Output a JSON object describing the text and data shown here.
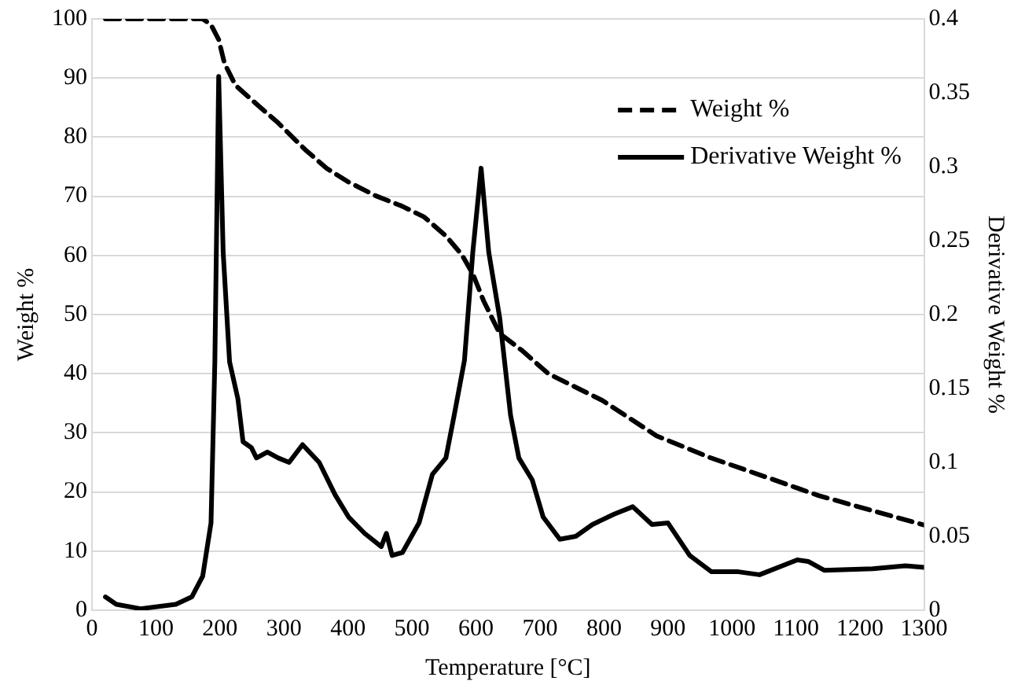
{
  "chart_data": {
    "type": "line",
    "xlabel": "Temperature [°C]",
    "ylabel": "Weight %",
    "y2label": "Derivative Weight %",
    "xlim": [
      0,
      1300
    ],
    "xticks": [
      0,
      100,
      200,
      300,
      400,
      500,
      600,
      700,
      800,
      900,
      1000,
      1100,
      1200,
      1300
    ],
    "ylim": [
      0,
      100
    ],
    "yticks": [
      0,
      10,
      20,
      30,
      40,
      50,
      60,
      70,
      80,
      90,
      100
    ],
    "y2lim": [
      0,
      0.4
    ],
    "y2ticks": [
      0,
      0.05,
      0.1,
      0.15,
      0.2,
      0.25,
      0.3,
      0.35,
      0.4
    ],
    "grid": "y",
    "legend": "top right",
    "marker": "none",
    "series": [
      {
        "name": "Weight %",
        "color": "#000000",
        "line_style": "dashed",
        "x": [
          21,
          173,
          186,
          198,
          207,
          224,
          257,
          291,
          333,
          367,
          401,
          443,
          485,
          519,
          553,
          578,
          595,
          612,
          637,
          671,
          713,
          797,
          882,
          966,
          1051,
          1135,
          1300
        ],
        "values": [
          100,
          100,
          99,
          96.5,
          92.5,
          88.8,
          85.6,
          82.4,
          77.9,
          74.7,
          72.4,
          70.1,
          68.3,
          66.5,
          63.3,
          60.1,
          56.9,
          52.3,
          46.8,
          44,
          40,
          35.5,
          29.5,
          25.8,
          22.6,
          19.4,
          14.4
        ]
      },
      {
        "name": "Derivative Weight %",
        "color": "#000000",
        "line_style": "solid",
        "axis": "y2",
        "x": [
          21,
          38,
          76,
          131,
          156,
          173,
          186,
          192,
          198,
          205,
          215,
          228,
          236,
          249,
          257,
          274,
          291,
          308,
          329,
          355,
          380,
          401,
          426,
          452,
          460,
          469,
          485,
          511,
          532,
          553,
          566,
          582,
          595,
          608,
          620,
          637,
          654,
          667,
          688,
          705,
          731,
          756,
          782,
          816,
          845,
          875,
          900,
          934,
          968,
          1010,
          1043,
          1102,
          1119,
          1144,
          1220,
          1271,
          1300
        ],
        "values": [
          0.009,
          0.004,
          0.001,
          0.004,
          0.009,
          0.023,
          0.059,
          0.168,
          0.361,
          0.242,
          0.168,
          0.143,
          0.114,
          0.11,
          0.103,
          0.107,
          0.103,
          0.1,
          0.112,
          0.1,
          0.078,
          0.063,
          0.052,
          0.043,
          0.052,
          0.037,
          0.039,
          0.059,
          0.092,
          0.103,
          0.132,
          0.169,
          0.242,
          0.299,
          0.242,
          0.198,
          0.132,
          0.103,
          0.088,
          0.063,
          0.048,
          0.05,
          0.058,
          0.065,
          0.07,
          0.058,
          0.059,
          0.037,
          0.026,
          0.026,
          0.024,
          0.034,
          0.033,
          0.027,
          0.028,
          0.03,
          0.029
        ]
      }
    ]
  }
}
